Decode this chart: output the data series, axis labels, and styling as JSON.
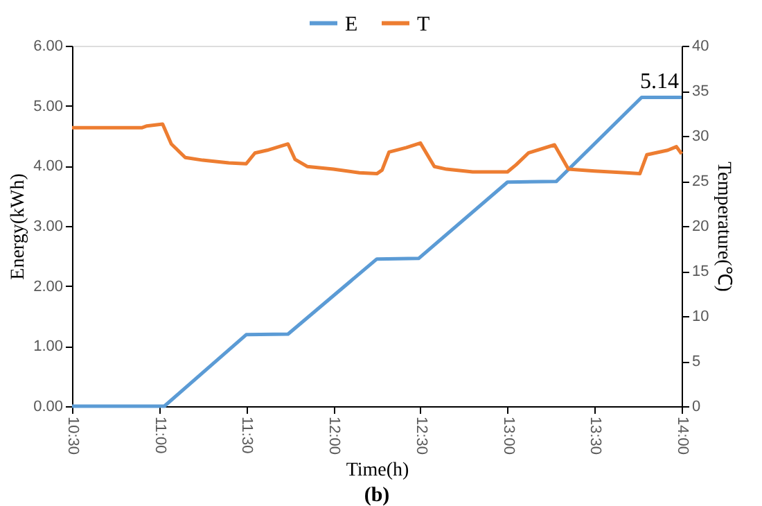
{
  "chart_data": {
    "type": "line",
    "xlabel": "Time(h)",
    "ylabel": "Energy(kWh)",
    "y2label": "Temperature(℃)",
    "xlim": [
      10.5,
      14
    ],
    "xticks": [
      {
        "value": 10.5,
        "label": "10:30"
      },
      {
        "value": 11,
        "label": "11:00"
      },
      {
        "value": 11.5,
        "label": "11:30"
      },
      {
        "value": 12,
        "label": "12:00"
      },
      {
        "value": 12.5,
        "label": "12:30"
      },
      {
        "value": 13,
        "label": "13:00"
      },
      {
        "value": 13.5,
        "label": "13:30"
      },
      {
        "value": 14,
        "label": "14:00"
      }
    ],
    "ylim": [
      0,
      6
    ],
    "yticks": [
      {
        "value": 0,
        "label": "0.00"
      },
      {
        "value": 1,
        "label": "1.00"
      },
      {
        "value": 2,
        "label": "2.00"
      },
      {
        "value": 3,
        "label": "3.00"
      },
      {
        "value": 4,
        "label": "4.00"
      },
      {
        "value": 5,
        "label": "5.00"
      },
      {
        "value": 6,
        "label": "6.00"
      }
    ],
    "y2lim": [
      0,
      40
    ],
    "y2ticks": [
      0,
      5,
      10,
      15,
      20,
      25,
      30,
      35,
      40
    ],
    "series": [
      {
        "name": "E",
        "color": "#5b9bd5",
        "x": [
          10.5,
          11.03,
          11.5,
          11.74,
          12.25,
          12.49,
          13.0,
          13.28,
          13.77,
          14.0
        ],
        "values": [
          0,
          0,
          1.19,
          1.2,
          2.45,
          2.46,
          3.73,
          3.74,
          5.14,
          5.14
        ]
      },
      {
        "name": "T",
        "color": "#ed7d31",
        "axis": "y2",
        "x": [
          10.5,
          10.9,
          10.93,
          11.02,
          11.07,
          11.15,
          11.25,
          11.4,
          11.5,
          11.55,
          11.62,
          11.74,
          11.78,
          11.85,
          12.0,
          12.15,
          12.25,
          12.28,
          12.32,
          12.42,
          12.5,
          12.58,
          12.65,
          12.8,
          13.0,
          13.05,
          13.12,
          13.27,
          13.35,
          13.5,
          13.68,
          13.76,
          13.8,
          13.92,
          13.97,
          14.0
        ],
        "values": [
          30.9,
          30.9,
          31.1,
          31.3,
          29.1,
          27.6,
          27.3,
          27.0,
          26.9,
          28.1,
          28.4,
          29.1,
          27.4,
          26.6,
          26.3,
          25.9,
          25.8,
          26.2,
          28.2,
          28.7,
          29.2,
          26.6,
          26.3,
          26.0,
          26.0,
          26.8,
          28.1,
          29.0,
          26.3,
          26.1,
          25.9,
          25.8,
          27.9,
          28.4,
          28.8,
          28.0
        ]
      }
    ],
    "marker": "none",
    "line_style": "solid",
    "grid": false,
    "legend": "top",
    "annotations": [
      {
        "text": "5.14",
        "x": 14,
        "y": 5.14
      },
      "(b)"
    ]
  }
}
